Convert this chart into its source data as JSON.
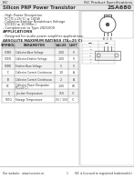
{
  "header_left": "ISC",
  "header_right": "ISC Product Specifications",
  "title_left": "r Transistor",
  "title_right": "2SA680",
  "features": [
    "- High Power Dissipation",
    "  PC(TC=25°C) ≥ 100W",
    "- Collector-Emitter Breakdown Voltage",
    "  V(CEO) ≥ 100(Min.)",
    "- Complement to Type 2SD1009"
  ],
  "applications_title": "APPLICATIONS",
  "applications": "- Designed for audio power amplifier applications.",
  "table_title": "ABSOLUTE MAXIMUM RATINGS (TA=25°C)",
  "table_headers": [
    "SYMBOL",
    "PARAMETER",
    "VALUE",
    "UNIT"
  ],
  "table_rows": [
    [
      "VCBO",
      "Collector-Base Voltage",
      "-100",
      "V"
    ],
    [
      "VCEO",
      "Collector-Emitter Voltage",
      "-100",
      "V"
    ],
    [
      "VEBO",
      "Emitter-Base Voltage",
      "-5",
      "V"
    ],
    [
      "IC",
      "Collector Current-Continuous",
      "-10",
      "A"
    ],
    [
      "IB",
      "Collector Current-Continuous",
      "-2",
      "A"
    ],
    [
      "PC",
      "Collector Power Dissipation\n(TC=25°C)",
      "-100",
      "W"
    ],
    [
      "TJ",
      "Junction Temperature",
      "150",
      "°C"
    ],
    [
      "TSTG",
      "Storage Temperature",
      "-55 / 150",
      "°C"
    ]
  ],
  "footer_left": "Our website:  www.iscsemi.cn",
  "footer_center": "1",
  "footer_right": "ISC is licensed to registered trademark(s)",
  "bg_color": "#ffffff",
  "text_color": "#333333",
  "header_bg": "#e8e8e8",
  "table_header_bg": "#d0d0d0",
  "table_line_color": "#888888",
  "divider_color": "#999999"
}
